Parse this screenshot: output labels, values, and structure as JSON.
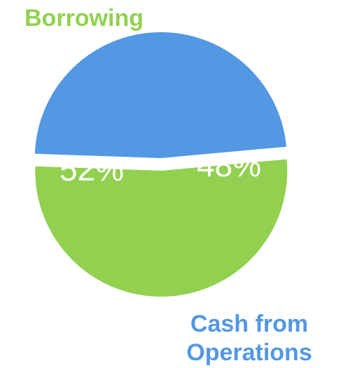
{
  "chart_data": {
    "type": "pie",
    "slices": [
      {
        "name": "Cash from Operations",
        "label_lines": [
          "Cash from",
          "Operations"
        ],
        "value": 48,
        "value_label": "48%",
        "color": "#5298e3"
      },
      {
        "name": "Borrowing",
        "label_lines": [
          "Borrowing"
        ],
        "value": 52,
        "value_label": "52%",
        "color": "#92d050"
      }
    ],
    "legend": "none"
  }
}
